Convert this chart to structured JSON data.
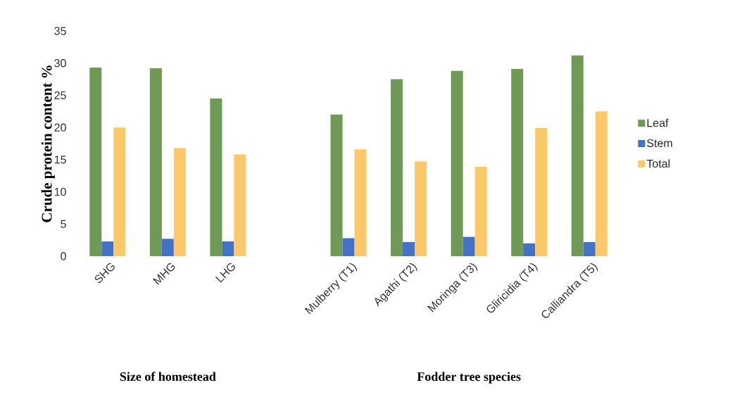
{
  "chart_data": {
    "type": "bar",
    "ylabel": "Crude protein content %",
    "categories": [
      "SHG",
      "MHG",
      "LHG",
      null,
      "Mulberry (T1)",
      "Agathi (T2)",
      "Moringa (T3)",
      "Gliricidia (T4)",
      "Calliandra (T5)"
    ],
    "series": [
      {
        "name": "Leaf",
        "color": "#6e9a55",
        "values": [
          29.3,
          29.2,
          24.5,
          null,
          22.0,
          27.5,
          28.8,
          29.1,
          31.2
        ]
      },
      {
        "name": "Stem",
        "color": "#4472c4",
        "values": [
          2.3,
          2.7,
          2.3,
          null,
          2.8,
          2.2,
          3.0,
          2.0,
          2.2
        ]
      },
      {
        "name": "Total",
        "color": "#fcc86a",
        "values": [
          20.0,
          16.8,
          15.8,
          null,
          16.6,
          14.7,
          13.9,
          19.9,
          22.5
        ]
      }
    ],
    "ylim": [
      0,
      35
    ],
    "yticks": [
      0,
      5,
      10,
      15,
      20,
      25,
      30,
      35
    ],
    "legend": "right",
    "annotations": [
      "Size of homestead",
      "Fodder tree species"
    ]
  }
}
